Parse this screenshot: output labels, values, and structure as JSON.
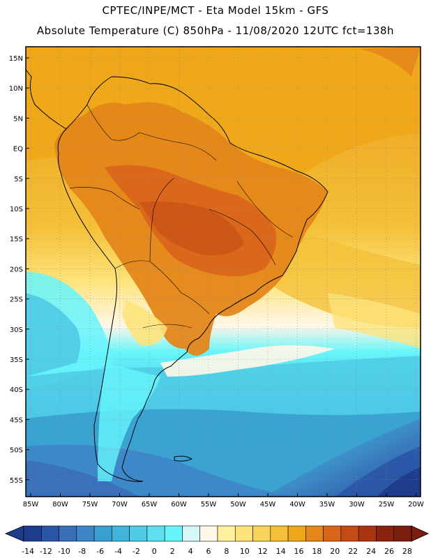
{
  "header": {
    "line1": "CPTEC/INPE/MCT -  Eta Model 15km - GFS",
    "line2": "Absolute Temperature (C) 850hPa - 11/08/2020 12UTC fct=138h"
  },
  "axes": {
    "lat_labels": [
      "15N",
      "10N",
      "5N",
      "EQ",
      "5S",
      "10S",
      "15S",
      "20S",
      "25S",
      "30S",
      "35S",
      "40S",
      "45S",
      "50S",
      "55S"
    ],
    "lon_labels": [
      "85W",
      "80W",
      "75W",
      "70W",
      "65W",
      "60W",
      "55W",
      "50W",
      "45W",
      "40W",
      "35W",
      "30W",
      "25W",
      "20W"
    ]
  },
  "colorbar": {
    "labels": [
      "-14",
      "-12",
      "-10",
      "-8",
      "-6",
      "-4",
      "-2",
      "0",
      "2",
      "4",
      "6",
      "8",
      "10",
      "12",
      "14",
      "16",
      "18",
      "20",
      "22",
      "24",
      "26",
      "28"
    ],
    "colors": [
      "#1e3c8c",
      "#2a55a5",
      "#3a6fb8",
      "#3d85c6",
      "#3a9fcf",
      "#41b4db",
      "#4fcbe6",
      "#5fe0f0",
      "#66f5fb",
      "#d7f6fa",
      "#fff7e8",
      "#ffef9e",
      "#fde37a",
      "#f9d45a",
      "#f4c038",
      "#eea71a",
      "#e4861a",
      "#d9651a",
      "#c44b14",
      "#a83410",
      "#8a2210",
      "#7a1e10"
    ]
  },
  "map": {
    "colors": {
      "ocean_warm": "#eea71a",
      "ocean_mid": "#f4c038",
      "land_hot": "#d9651a",
      "land_warm": "#e4861a",
      "cool_cyan": "#66f5fb",
      "cold_blue": "#3a9fcf",
      "deep_blue": "#2a55a5"
    }
  }
}
